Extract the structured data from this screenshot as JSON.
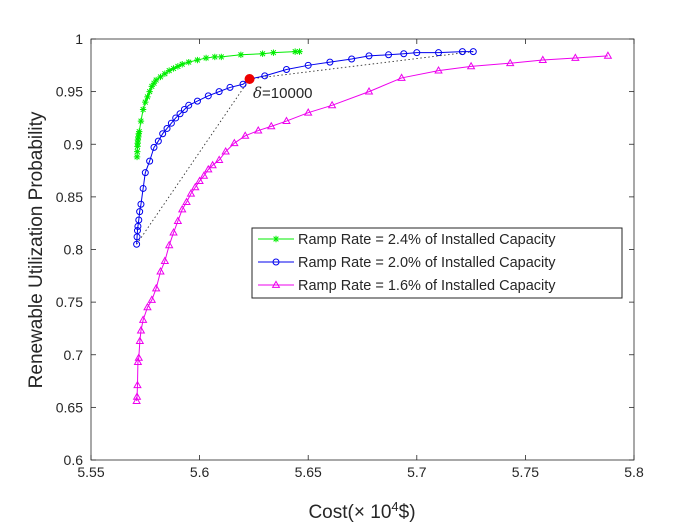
{
  "chart_data": {
    "type": "line",
    "title": "",
    "xlabel_prefix": "Cost(",
    "xlabel_times": "×",
    "xlabel_base": " 10",
    "xlabel_exp": "4",
    "xlabel_suffix": "$)",
    "ylabel": "Renewable Utilization Probability",
    "xlim": [
      5.55,
      5.8
    ],
    "ylim": [
      0.6,
      1.0
    ],
    "xticks": [
      5.55,
      5.6,
      5.65,
      5.7,
      5.75,
      5.8
    ],
    "xtick_labels": [
      "5.55",
      "5.6",
      "5.65",
      "5.7",
      "5.75",
      "5.8"
    ],
    "yticks": [
      0.6,
      0.65,
      0.7,
      0.75,
      0.8,
      0.85,
      0.9,
      0.95,
      1.0
    ],
    "ytick_labels": [
      "0.6",
      "0.65",
      "0.7",
      "0.75",
      "0.8",
      "0.85",
      "0.9",
      "0.95",
      "1"
    ],
    "grid": false,
    "legend_position": "center-right",
    "series": [
      {
        "name": "Ramp Rate = 2.4% of Installed Capacity",
        "color": "#00ee00",
        "marker": "star",
        "x": [
          5.5712,
          5.5713,
          5.5714,
          5.5715,
          5.5716,
          5.5718,
          5.572,
          5.5722,
          5.573,
          5.574,
          5.575,
          5.576,
          5.577,
          5.578,
          5.579,
          5.58,
          5.582,
          5.584,
          5.586,
          5.588,
          5.59,
          5.592,
          5.595,
          5.599,
          5.603,
          5.607,
          5.61,
          5.619,
          5.629,
          5.634,
          5.644,
          5.646
        ],
        "y": [
          0.888,
          0.893,
          0.898,
          0.901,
          0.904,
          0.907,
          0.91,
          0.912,
          0.922,
          0.933,
          0.94,
          0.945,
          0.95,
          0.955,
          0.958,
          0.961,
          0.964,
          0.967,
          0.97,
          0.972,
          0.974,
          0.976,
          0.978,
          0.98,
          0.982,
          0.983,
          0.983,
          0.985,
          0.986,
          0.987,
          0.988,
          0.988
        ]
      },
      {
        "name": "Ramp Rate = 2.0% of Installed Capacity",
        "color": "#0000ee",
        "marker": "circle",
        "x": [
          5.571,
          5.5712,
          5.5714,
          5.5716,
          5.572,
          5.5724,
          5.573,
          5.574,
          5.575,
          5.577,
          5.579,
          5.581,
          5.583,
          5.585,
          5.587,
          5.589,
          5.591,
          5.593,
          5.595,
          5.599,
          5.604,
          5.609,
          5.614,
          5.62,
          5.623,
          5.63,
          5.64,
          5.65,
          5.66,
          5.67,
          5.678,
          5.687,
          5.694,
          5.7,
          5.71,
          5.721,
          5.726
        ],
        "y": [
          0.805,
          0.812,
          0.818,
          0.822,
          0.828,
          0.836,
          0.843,
          0.858,
          0.873,
          0.884,
          0.897,
          0.903,
          0.91,
          0.915,
          0.92,
          0.925,
          0.929,
          0.933,
          0.937,
          0.941,
          0.946,
          0.95,
          0.954,
          0.957,
          0.962,
          0.965,
          0.971,
          0.975,
          0.978,
          0.981,
          0.984,
          0.985,
          0.986,
          0.987,
          0.987,
          0.988,
          0.988
        ]
      },
      {
        "name": "Ramp Rate = 1.6% of Installed Capacity",
        "color": "#ee00ee",
        "marker": "triangle",
        "x": [
          5.571,
          5.5712,
          5.5714,
          5.5716,
          5.572,
          5.5725,
          5.573,
          5.574,
          5.576,
          5.578,
          5.58,
          5.582,
          5.584,
          5.586,
          5.588,
          5.59,
          5.592,
          5.594,
          5.596,
          5.598,
          5.6,
          5.602,
          5.604,
          5.606,
          5.609,
          5.612,
          5.616,
          5.621,
          5.627,
          5.633,
          5.64,
          5.65,
          5.661,
          5.678,
          5.693,
          5.71,
          5.725,
          5.743,
          5.758,
          5.773,
          5.788
        ],
        "y": [
          0.656,
          0.66,
          0.671,
          0.693,
          0.697,
          0.713,
          0.723,
          0.733,
          0.745,
          0.752,
          0.763,
          0.779,
          0.789,
          0.804,
          0.816,
          0.827,
          0.838,
          0.845,
          0.853,
          0.859,
          0.865,
          0.87,
          0.876,
          0.88,
          0.885,
          0.893,
          0.901,
          0.908,
          0.913,
          0.917,
          0.922,
          0.93,
          0.937,
          0.95,
          0.963,
          0.97,
          0.974,
          0.977,
          0.98,
          0.982,
          0.984
        ]
      }
    ],
    "connectors": [
      {
        "from": [
          5.571,
          0.805
        ],
        "to": [
          5.623,
          0.962
        ]
      },
      {
        "from": [
          5.623,
          0.962
        ],
        "to": [
          5.726,
          0.988
        ]
      }
    ],
    "highlight_point": {
      "x": 5.623,
      "y": 0.962,
      "color": "#ee0000"
    },
    "annotation": {
      "symbol": "δ",
      "text": "=10000",
      "x": 5.626,
      "y": 0.944
    }
  }
}
